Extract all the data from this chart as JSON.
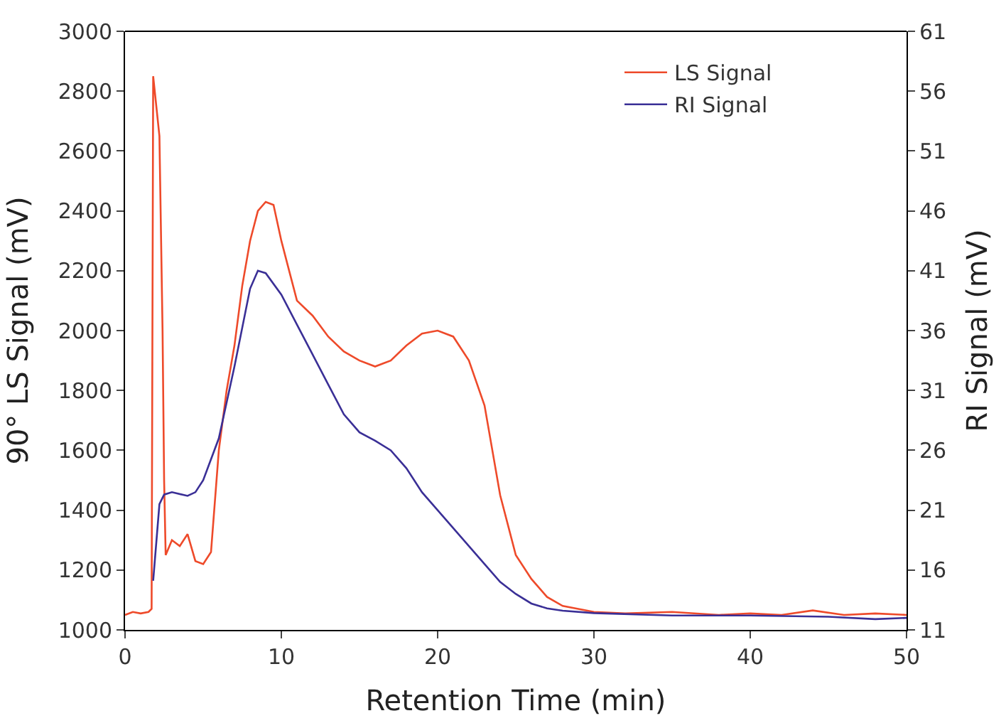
{
  "chart_data": {
    "type": "line",
    "xlabel": "Retention Time (min)",
    "ylabel": "90° LS Signal (mV)",
    "y2label": "RI Signal (mV)",
    "xlim": [
      0,
      50
    ],
    "xticks": [
      0,
      10,
      20,
      30,
      40,
      50
    ],
    "ylim": [
      1000,
      3000
    ],
    "yticks": [
      1000,
      1200,
      1400,
      1600,
      1800,
      2000,
      2200,
      2400,
      2600,
      2800,
      3000
    ],
    "y2lim": [
      11,
      61
    ],
    "y2ticks": [
      11,
      16,
      21,
      26,
      31,
      36,
      41,
      46,
      51,
      56,
      61
    ],
    "legend": "top right",
    "marker": "none",
    "line_style": "solid",
    "series": [
      {
        "name": "LS Signal",
        "color": "#ee4a2a",
        "x": [
          0,
          0.5,
          1,
          1.5,
          1.7,
          1.8,
          2.2,
          2.4,
          2.5,
          2.6,
          3,
          3.5,
          4,
          4.5,
          5,
          5.5,
          6,
          6.5,
          7,
          7.5,
          8,
          8.5,
          9,
          9.5,
          10,
          10.5,
          11,
          12,
          13,
          14,
          15,
          16,
          17,
          18,
          19,
          20,
          21,
          22,
          23,
          23.5,
          24,
          24.5,
          25,
          26,
          27,
          28,
          29,
          30,
          32,
          35,
          38,
          40,
          42,
          44,
          46,
          48,
          50
        ],
        "values": [
          1050,
          1060,
          1055,
          1060,
          1070,
          2850,
          2650,
          2000,
          1500,
          1250,
          1300,
          1280,
          1320,
          1230,
          1220,
          1260,
          1600,
          1800,
          1950,
          2150,
          2300,
          2400,
          2430,
          2420,
          2300,
          2200,
          2100,
          2050,
          1980,
          1930,
          1900,
          1880,
          1900,
          1950,
          1990,
          2000,
          1980,
          1900,
          1750,
          1600,
          1450,
          1350,
          1250,
          1170,
          1110,
          1080,
          1070,
          1060,
          1055,
          1060,
          1050,
          1055,
          1050,
          1065,
          1050,
          1055,
          1050
        ]
      },
      {
        "name": "RI Signal",
        "color": "#3a2f96",
        "axis": "y2",
        "x": [
          1.8,
          2.2,
          2.5,
          3,
          4,
          4.5,
          5,
          6,
          7,
          8,
          8.5,
          9,
          10,
          11,
          12,
          13,
          14,
          15,
          16,
          17,
          18,
          19,
          20,
          21,
          22,
          23,
          24,
          25,
          26,
          27,
          28,
          30,
          35,
          40,
          45,
          48,
          50
        ],
        "values": [
          15.1,
          21.5,
          22.3,
          22.5,
          22.2,
          22.5,
          23.5,
          27,
          33,
          39.5,
          41,
          40.8,
          39,
          36.5,
          34,
          31.5,
          29,
          27.5,
          26.8,
          26,
          24.5,
          22.5,
          21,
          19.5,
          18,
          16.5,
          15,
          14,
          13.2,
          12.8,
          12.6,
          12.4,
          12.2,
          12.2,
          12.1,
          11.9,
          12
        ]
      }
    ]
  }
}
